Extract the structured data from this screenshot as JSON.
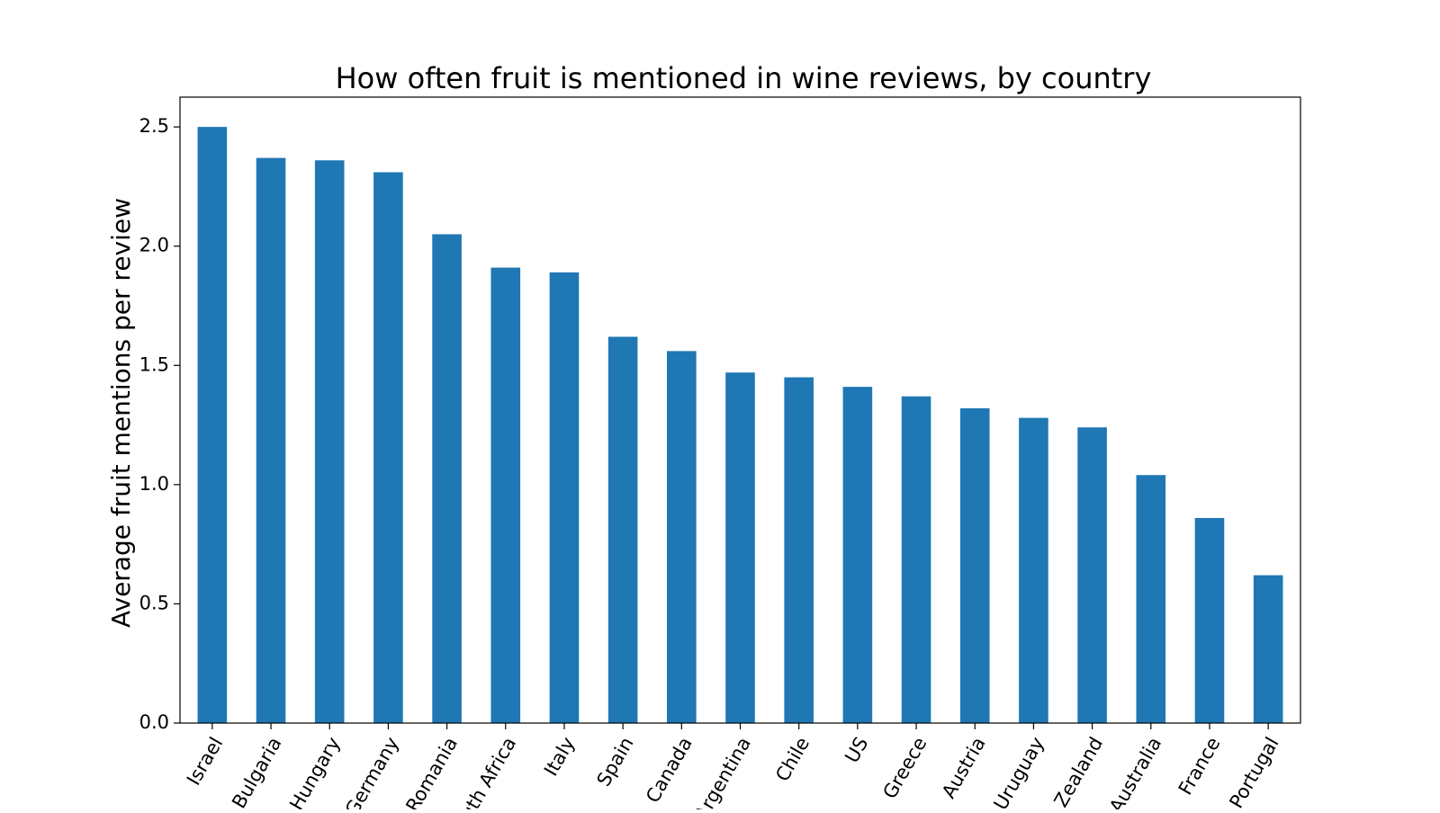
{
  "chart_data": {
    "type": "bar",
    "title": "How often fruit is mentioned in wine reviews, by country",
    "xlabel": "",
    "ylabel": "Average fruit mentions per review",
    "categories": [
      "Israel",
      "Bulgaria",
      "Hungary",
      "Germany",
      "Romania",
      "South Africa",
      "Italy",
      "Spain",
      "Canada",
      "Argentina",
      "Chile",
      "US",
      "Greece",
      "Austria",
      "Uruguay",
      "New Zealand",
      "Australia",
      "France",
      "Portugal"
    ],
    "values": [
      2.5,
      2.37,
      2.36,
      2.31,
      2.05,
      1.91,
      1.89,
      1.62,
      1.56,
      1.47,
      1.45,
      1.41,
      1.37,
      1.32,
      1.28,
      1.24,
      1.04,
      0.86,
      0.62
    ],
    "yticks": [
      "0.0",
      "0.5",
      "1.0",
      "1.5",
      "2.0",
      "2.5"
    ],
    "ylim": [
      0,
      2.625
    ],
    "bar_color": "#1f77b4",
    "grid": false,
    "legend": "none"
  }
}
